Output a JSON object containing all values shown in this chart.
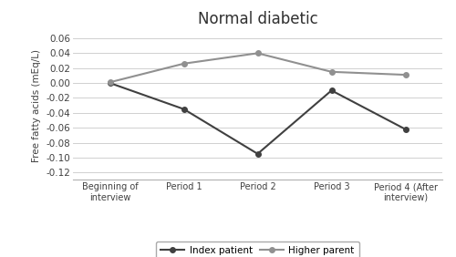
{
  "title": "Normal diabetic",
  "ylabel": "Free fatty acids (mEq/L)",
  "categories": [
    "Beginning of\ninterview",
    "Period 1",
    "Period 2",
    "Period 3",
    "Period 4 (After\ninterview)"
  ],
  "index_patient": [
    0.0,
    -0.035,
    -0.095,
    -0.01,
    -0.062
  ],
  "higher_parent": [
    0.001,
    0.026,
    0.04,
    0.015,
    0.011
  ],
  "index_color": "#404040",
  "higher_color": "#909090",
  "ylim": [
    -0.13,
    0.07
  ],
  "yticks": [
    -0.12,
    -0.1,
    -0.08,
    -0.06,
    -0.04,
    -0.02,
    0.0,
    0.02,
    0.04,
    0.06
  ],
  "legend_labels": [
    "Index patient",
    "Higher parent"
  ],
  "background_color": "#ffffff",
  "grid_color": "#d0d0d0"
}
